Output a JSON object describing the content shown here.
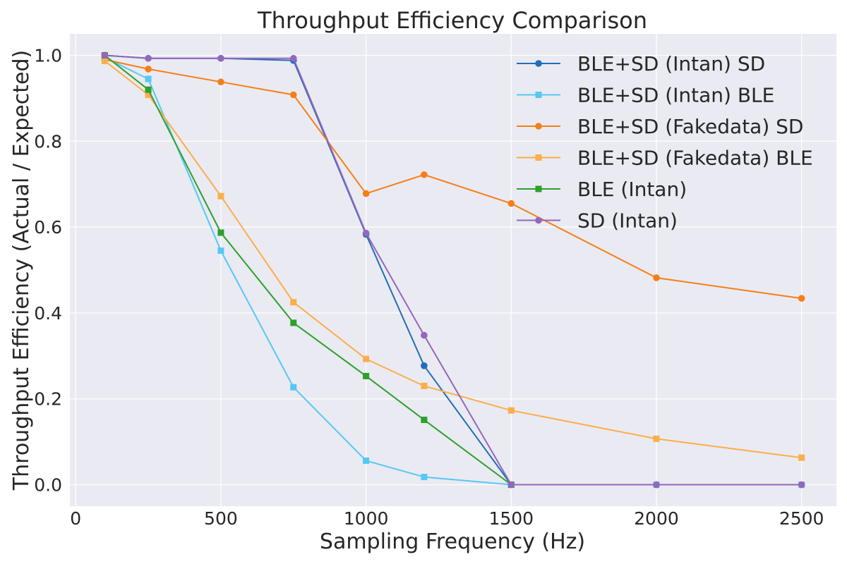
{
  "chart_data": {
    "type": "line",
    "title": "Throughput Efficiency Comparison",
    "xlabel": "Sampling Frequency (Hz)",
    "ylabel": "Throughput Efficiency (Actual / Expected)",
    "xlim": [
      -20,
      2620
    ],
    "ylim": [
      -0.05,
      1.05
    ],
    "xticks": [
      0,
      500,
      1000,
      1500,
      2000,
      2500
    ],
    "xtick_labels": [
      "0",
      "500",
      "1000",
      "1500",
      "2000",
      "2500"
    ],
    "yticks": [
      0.0,
      0.2,
      0.4,
      0.6,
      0.8,
      1.0
    ],
    "ytick_labels": [
      "0.0",
      "0.2",
      "0.4",
      "0.6",
      "0.8",
      "1.0"
    ],
    "grid": true,
    "legend_position": "top-right",
    "background": "#eaeaf2",
    "series": [
      {
        "name": "BLE+SD (Intan) SD",
        "color": "#1f6fb4",
        "marker": "circle",
        "x": [
          100,
          250,
          500,
          750,
          1000,
          1200,
          1500,
          2000,
          2500
        ],
        "y": [
          1.0,
          0.993,
          0.993,
          0.988,
          0.583,
          0.277,
          0.0,
          0.0,
          0.0
        ]
      },
      {
        "name": "BLE+SD (Intan) BLE",
        "color": "#55c8f5",
        "marker": "square",
        "x": [
          100,
          250,
          500,
          750,
          1000,
          1200,
          1500,
          2000,
          2500
        ],
        "y": [
          0.995,
          0.945,
          0.545,
          0.227,
          0.056,
          0.018,
          0.0,
          0.0,
          0.0
        ]
      },
      {
        "name": "BLE+SD (Fakedata) SD",
        "color": "#f57f17",
        "marker": "circle",
        "x": [
          100,
          250,
          500,
          750,
          1000,
          1200,
          1500,
          2000,
          2500
        ],
        "y": [
          0.99,
          0.968,
          0.938,
          0.908,
          0.678,
          0.722,
          0.655,
          0.482,
          0.434
        ]
      },
      {
        "name": "BLE+SD (Fakedata) BLE",
        "color": "#fbae4a",
        "marker": "square",
        "x": [
          100,
          250,
          500,
          750,
          1000,
          1200,
          1500,
          2000,
          2500
        ],
        "y": [
          0.987,
          0.908,
          0.672,
          0.425,
          0.293,
          0.23,
          0.173,
          0.107,
          0.063
        ]
      },
      {
        "name": "BLE (Intan)",
        "color": "#2ca02c",
        "marker": "square",
        "x": [
          100,
          250,
          500,
          750,
          1000,
          1200,
          1500
        ],
        "y": [
          1.0,
          0.92,
          0.587,
          0.377,
          0.253,
          0.151,
          0.0
        ]
      },
      {
        "name": "SD (Intan)",
        "color": "#9467bd",
        "marker": "circle",
        "x": [
          100,
          250,
          500,
          750,
          1000,
          1200,
          1500,
          2000,
          2500
        ],
        "y": [
          1.0,
          0.993,
          0.993,
          0.993,
          0.586,
          0.348,
          0.0,
          0.0,
          0.0
        ]
      }
    ]
  }
}
